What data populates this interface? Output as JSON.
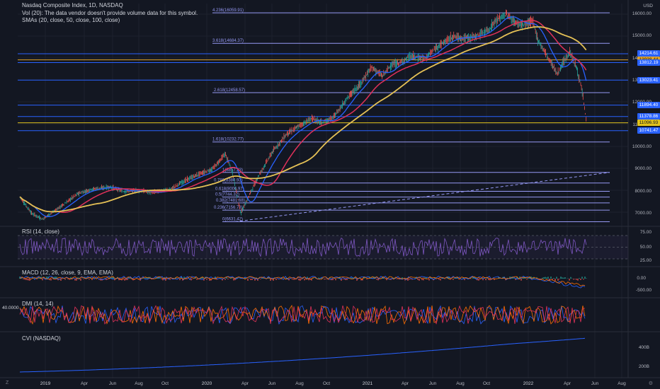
{
  "header": {
    "title": "Nasdaq Composite Index, 1D, NASDAQ",
    "volume_note": "Vol (20): The data vendor doesn't provide volume data for this symbol.",
    "smas": "SMAs (20, close, 50, close, 100, close)"
  },
  "currency": "USD",
  "price_axis": [
    "16000.00",
    "15000.00",
    "14000.00",
    "13000.00",
    "12000.00",
    "11000.00",
    "10000.00",
    "9000.00",
    "8000.00",
    "7000.00"
  ],
  "fib_levels": [
    {
      "label": "4.236(16059.91)",
      "value": 16059.91
    },
    {
      "label": "3.618(14684.37)",
      "value": 14684.37
    },
    {
      "label": "2.618(12458.57)",
      "value": 12458.57
    },
    {
      "label": "1.618(10232.77)",
      "value": 10232.77
    },
    {
      "label": "1(8857.23)",
      "value": 8857.23
    },
    {
      "label": "0.786(8380.93)",
      "value": 8380.93
    },
    {
      "label": "0.618(8006.97)",
      "value": 8006.97
    },
    {
      "label": "0.5(7744.32)",
      "value": 7744.32
    },
    {
      "label": "0.382(7481.68)",
      "value": 7481.68
    },
    {
      "label": "0.236(7156.78)",
      "value": 7156.78
    },
    {
      "label": "0(6631.42)",
      "value": 6631.42
    }
  ],
  "price_tags": [
    {
      "label": "14214.61",
      "value": 14214.61,
      "color": "#2962ff"
    },
    {
      "label": "13938.44",
      "value": 13938.44,
      "color": "#e1a32a"
    },
    {
      "label": "13812.19",
      "value": 13812.19,
      "color": "#2962ff"
    },
    {
      "label": "13023.41",
      "value": 13023.41,
      "color": "#2962ff"
    },
    {
      "label": "11894.40",
      "value": 11894.4,
      "color": "#2962ff"
    },
    {
      "label": "11378.86",
      "value": 11378.86,
      "color": "#2962ff"
    },
    {
      "label": "11096.93",
      "value": 11096.93,
      "color": "#e1c21c"
    },
    {
      "label": "10741.47",
      "value": 10741.47,
      "color": "#2962ff"
    }
  ],
  "rsi": {
    "title": "RSI (14, close)",
    "axis": [
      "75.00",
      "50.00",
      "25.00"
    ]
  },
  "macd": {
    "title": "MACD (12, 26, close, 9, EMA, EMA)",
    "axis": [
      "0.00",
      "-500.00"
    ]
  },
  "dmi": {
    "title": "DMI (14, 14)",
    "axis_left": "40.0000"
  },
  "cvi": {
    "title": "CVI (NASDAQ)",
    "axis": [
      "400B",
      "200B"
    ]
  },
  "time_axis": [
    "2019",
    "Apr",
    "Jun",
    "Aug",
    "Oct",
    "2020",
    "Apr",
    "Jun",
    "Aug",
    "Oct",
    "2021",
    "Apr",
    "Jun",
    "Aug",
    "Oct",
    "2022",
    "Apr",
    "Jun",
    "Aug"
  ],
  "colors": {
    "bg": "#131722",
    "fib": "#9598f3",
    "sma20": "#2962ff",
    "sma50": "#e0315a",
    "sma100": "#e5c156",
    "up": "#26a69a",
    "down": "#ef5350",
    "rsi": "#7e57c2",
    "macd": "#2962ff",
    "signal": "#ff6d00",
    "cvi": "#2962ff"
  },
  "icons": {
    "settings": "gear-icon",
    "zoom": "z-icon"
  }
}
